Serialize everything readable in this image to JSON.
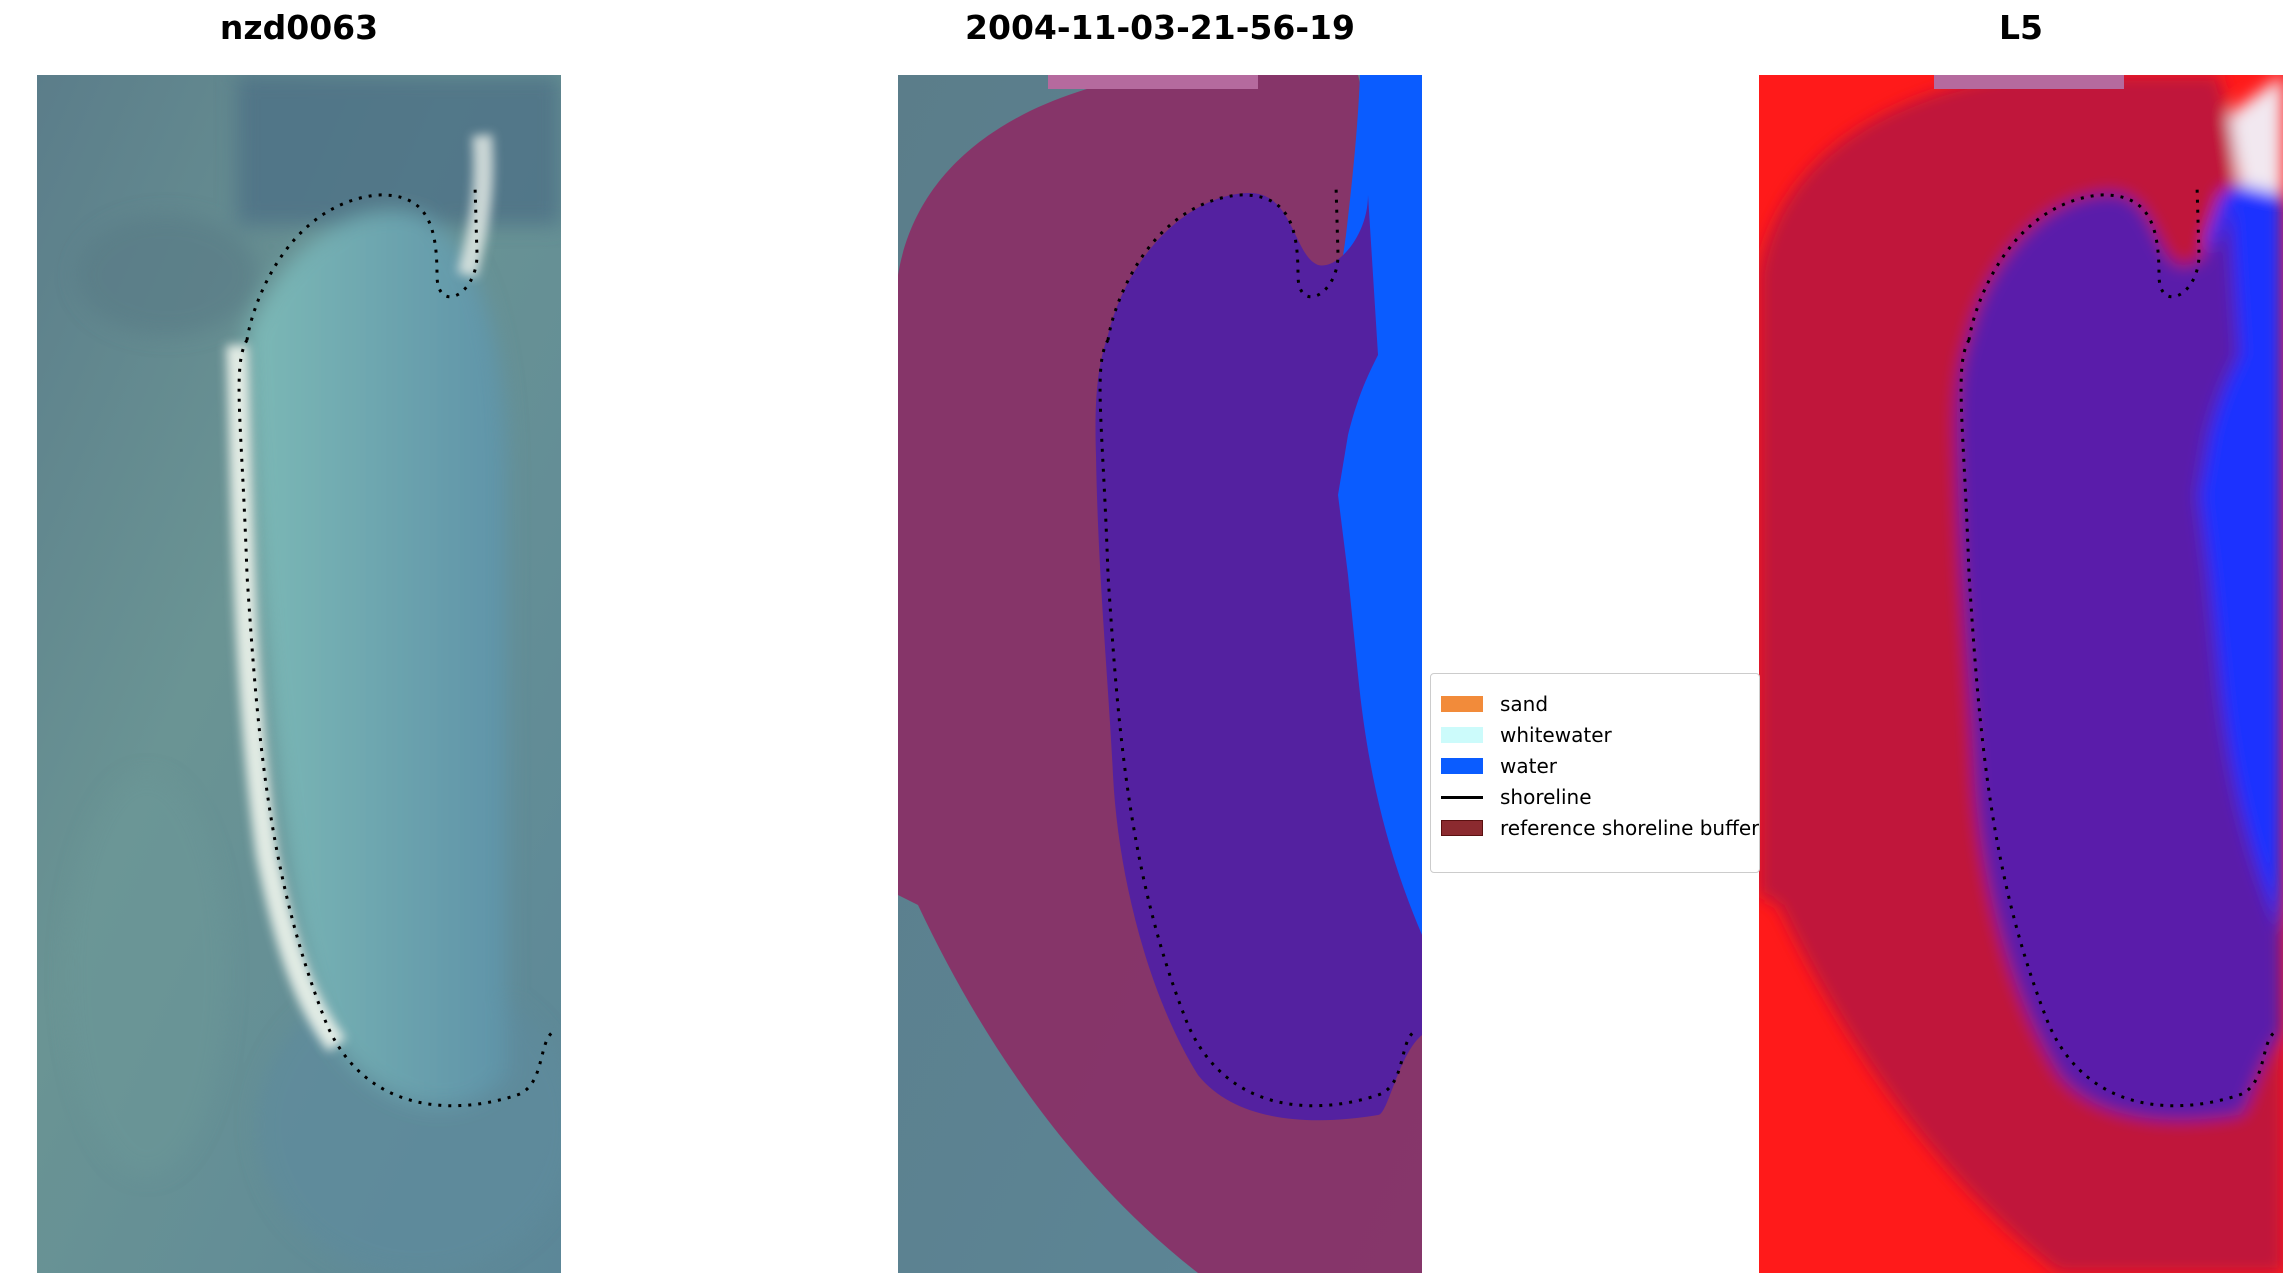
{
  "panels": [
    {
      "title": "nzd0063"
    },
    {
      "title": "2004-11-03-21-56-19"
    },
    {
      "title": "L5"
    }
  ],
  "legend": {
    "items": [
      {
        "label": "sand",
        "kind": "patch",
        "color": "#f28b3a"
      },
      {
        "label": "whitewater",
        "kind": "patch",
        "color": "#ccfbfb"
      },
      {
        "label": "water",
        "kind": "patch",
        "color": "#0a5cff"
      },
      {
        "label": "shoreline",
        "kind": "line",
        "color": "#000000"
      },
      {
        "label": "reference shoreline buffer",
        "kind": "patch",
        "color": "#8b2a2f"
      }
    ]
  },
  "colors": {
    "rgb_background": "#5f8c96",
    "rgb_lagoon": "#6fa8ae",
    "sand_strip": "#f0f4ee",
    "buffer_overlay": "#8a2f66",
    "water_class": "#0a5cff",
    "lagoon_class": "#5421a0",
    "index_red": "#ff1010",
    "index_crimson": "#c0143a",
    "index_blue": "#1a30ff",
    "index_purple": "#5a1aaa",
    "shoreline": "#000000"
  }
}
